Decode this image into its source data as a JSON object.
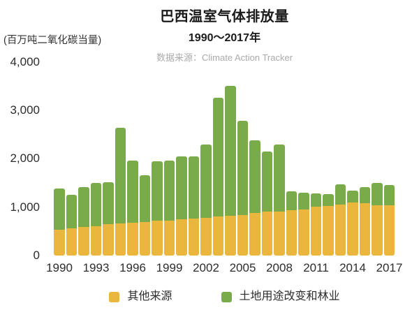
{
  "header": {
    "title": "巴西温室气体排放量",
    "subtitle": "1990～2017年",
    "source_label": "数据来源：",
    "source_value": "Climate Action Tracker",
    "unit_label": "(百万吨二氧化碳当量)"
  },
  "colors": {
    "other_source": "#EBB63E",
    "land_use": "#7AAB4A",
    "title_text": "#1A1A1A",
    "tick_text": "#2D2D2D",
    "source_text": "#ABABAB"
  },
  "legend": {
    "items": [
      {
        "label": "其他来源",
        "color": "#EBB63E"
      },
      {
        "label": "土地用途改变和林业",
        "color": "#7AAB4A"
      }
    ]
  },
  "chart_data": {
    "type": "bar",
    "stacked": true,
    "title": "巴西温室气体排放量",
    "subtitle": "1990～2017年",
    "source": "数据来源：Climate Action Tracker",
    "ylabel": "(百万吨二氧化碳当量)",
    "xlabel": "",
    "grid": false,
    "legend_position": "bottom",
    "ylim": [
      0,
      4000
    ],
    "x": [
      1990,
      1991,
      1992,
      1993,
      1994,
      1995,
      1996,
      1997,
      1998,
      1999,
      2000,
      2001,
      2002,
      2003,
      2004,
      2005,
      2006,
      2007,
      2008,
      2009,
      2010,
      2011,
      2012,
      2013,
      2014,
      2015,
      2016,
      2017
    ],
    "xticks": [
      1990,
      1993,
      1996,
      1999,
      2002,
      2005,
      2008,
      2011,
      2014,
      2017
    ],
    "yticks": [
      {
        "value": 0,
        "label": "0"
      },
      {
        "value": 1000,
        "label": "1,000"
      },
      {
        "value": 2000,
        "label": "2,000"
      },
      {
        "value": 3000,
        "label": "3,000"
      },
      {
        "value": 4000,
        "label": "4,000"
      }
    ],
    "series": [
      {
        "name": "其他来源",
        "color": "#EBB63E",
        "values": [
          530,
          560,
          595,
          610,
          650,
          665,
          675,
          690,
          720,
          725,
          745,
          760,
          785,
          805,
          825,
          840,
          880,
          905,
          915,
          940,
          950,
          1010,
          1020,
          1060,
          1095,
          1080,
          1045,
          1035
        ]
      },
      {
        "name": "土地用途改变和林业",
        "color": "#7AAB4A",
        "values": [
          855,
          690,
          815,
          885,
          865,
          1975,
          1285,
          970,
          1225,
          1235,
          1305,
          1290,
          1505,
          2455,
          2675,
          1950,
          1495,
          1250,
          1375,
          385,
          355,
          275,
          255,
          415,
          250,
          330,
          455,
          430
        ]
      }
    ]
  }
}
